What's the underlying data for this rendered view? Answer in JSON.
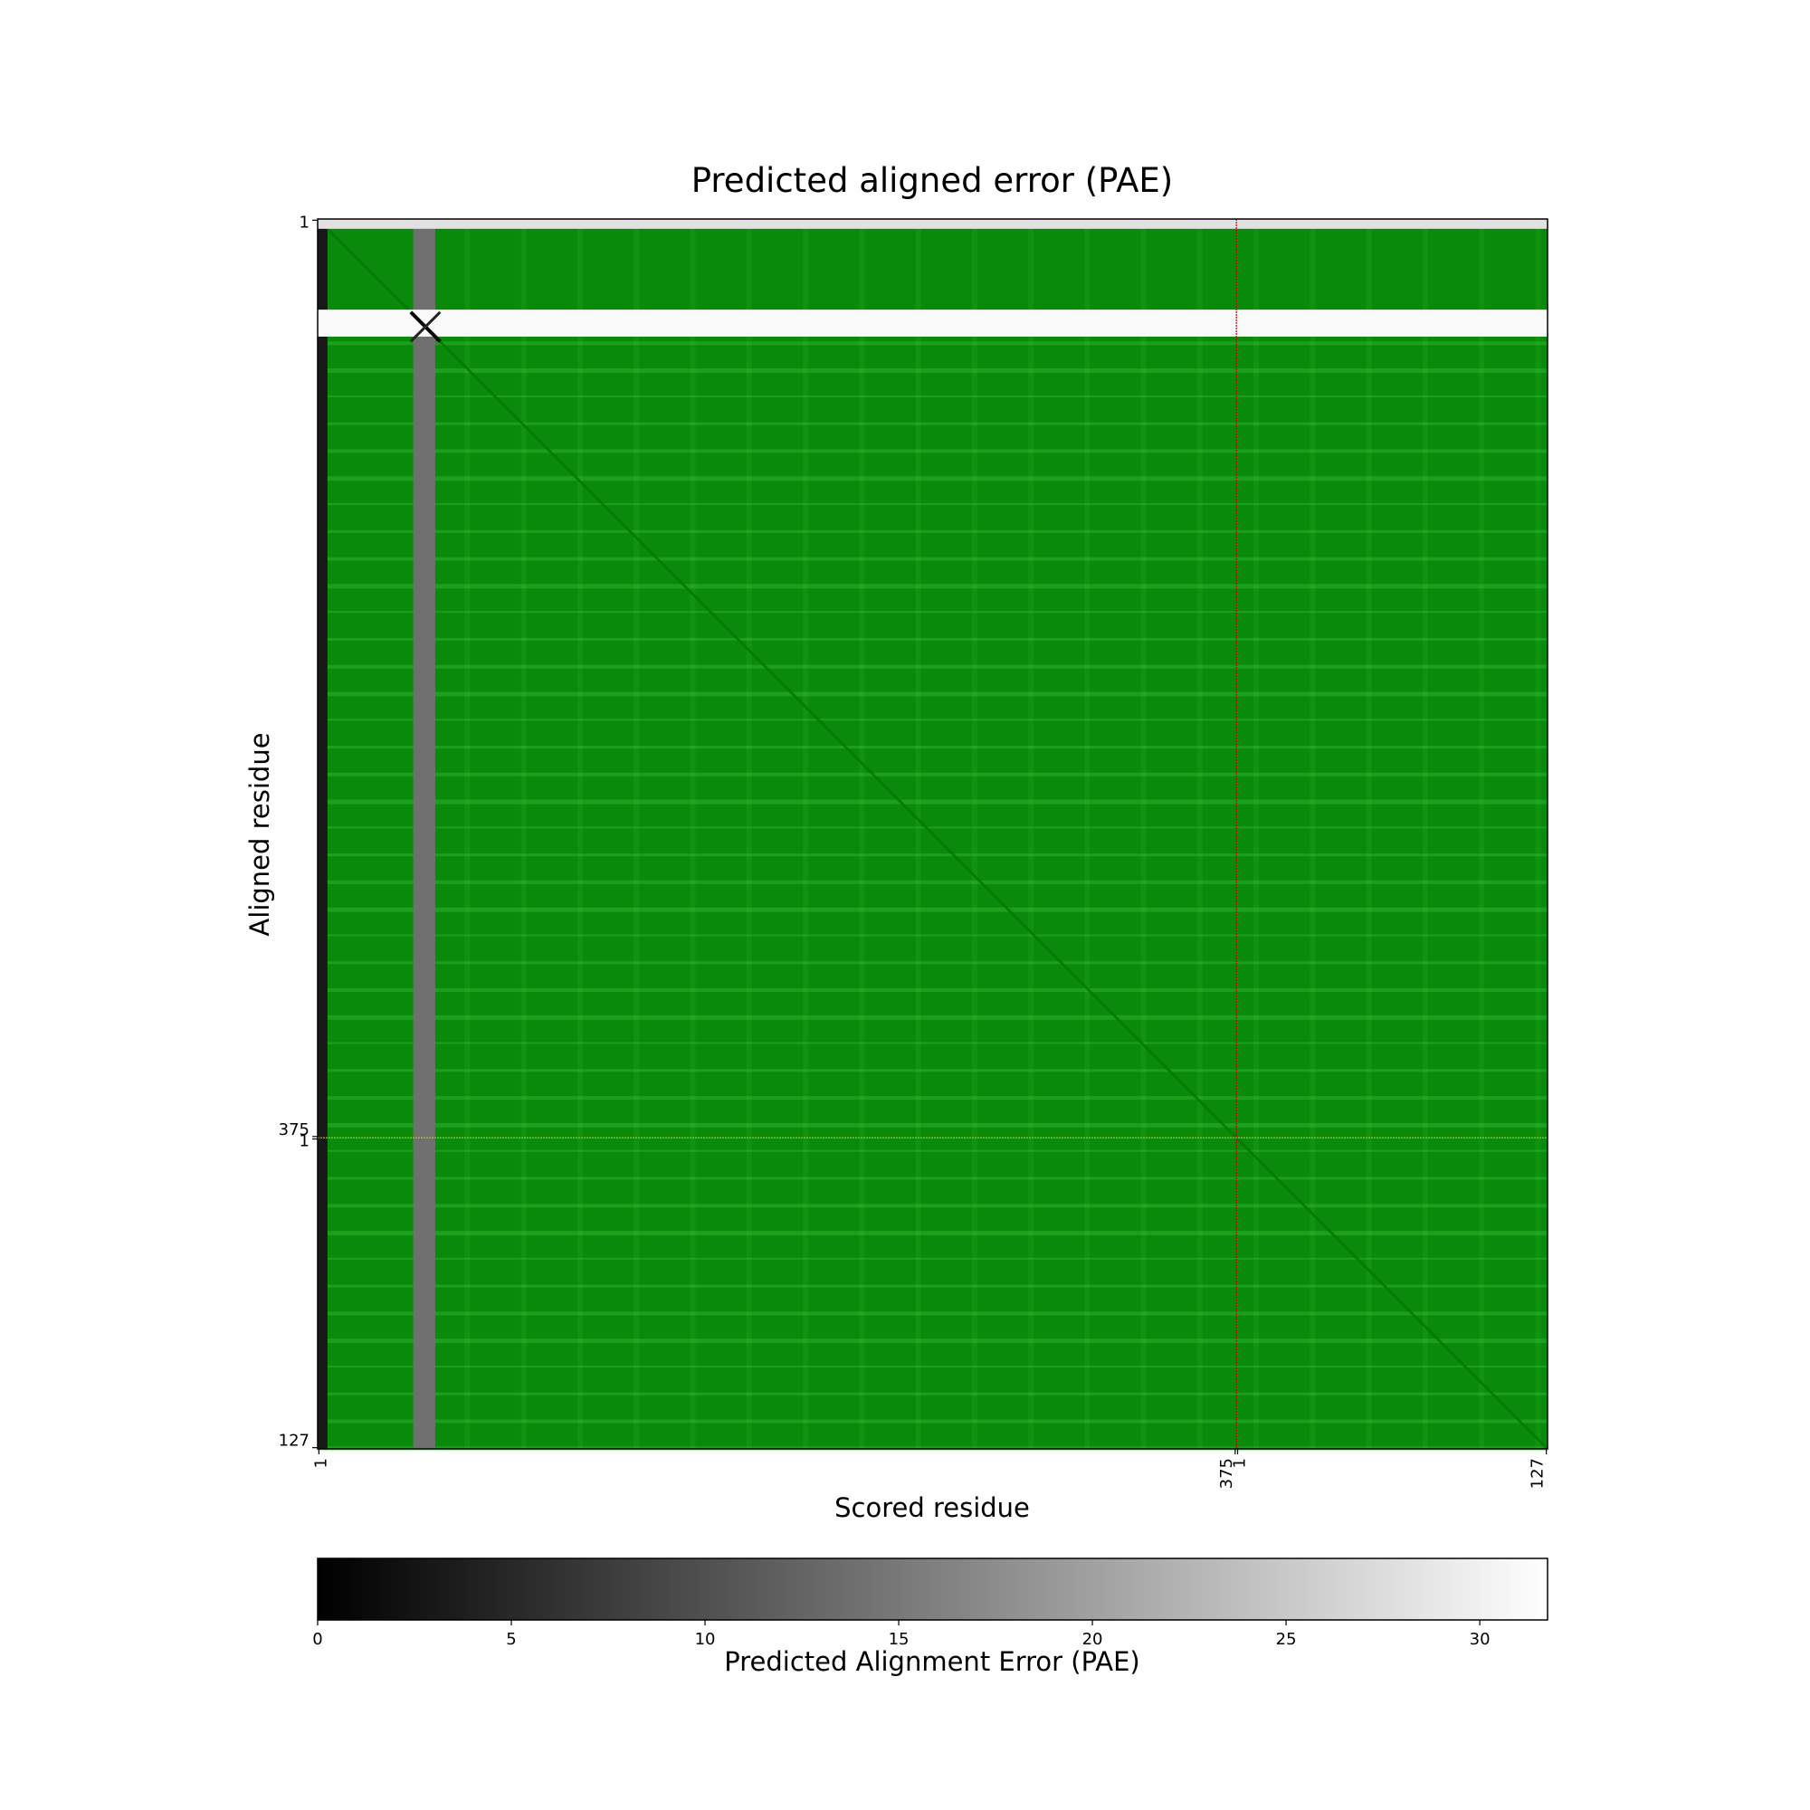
{
  "chart_data": {
    "type": "heatmap",
    "title": "Predicted aligned error (PAE)",
    "xlabel": "Scored residue",
    "ylabel": "Aligned residue",
    "chains": [
      {
        "length": 375,
        "start_label": "1",
        "end_label": "375"
      },
      {
        "length": 127,
        "start_label": "1",
        "end_label": "127"
      }
    ],
    "colorbar": {
      "label": "Predicted Alignment Error (PAE)",
      "min": 0,
      "max": 31.75,
      "ticks": [
        0,
        5,
        10,
        15,
        20,
        25,
        30
      ],
      "tick_labels": [
        "0",
        "5",
        "10",
        "15",
        "20",
        "25",
        "30"
      ],
      "low_color": "#000000",
      "high_color": "#ffffff"
    },
    "overlay": {
      "confident_color": "#0a8a0a",
      "confident_color_light": "#3ec83e",
      "chain_boundary_color": "#cc0000",
      "boundary_intersection_color": "#c8c800"
    },
    "approx_pae_profile": {
      "low_error_background": 2.5,
      "high_error_rows": [
        {
          "from": 38,
          "to": 48,
          "pae": 31
        }
      ],
      "high_error_columns": [
        {
          "from": 40,
          "to": 48,
          "pae": 14
        }
      ],
      "first_row_band": {
        "from": 1,
        "to": 4,
        "pae": 28
      },
      "first_column_band": {
        "from": 1,
        "to": 4,
        "pae": 3
      }
    }
  }
}
